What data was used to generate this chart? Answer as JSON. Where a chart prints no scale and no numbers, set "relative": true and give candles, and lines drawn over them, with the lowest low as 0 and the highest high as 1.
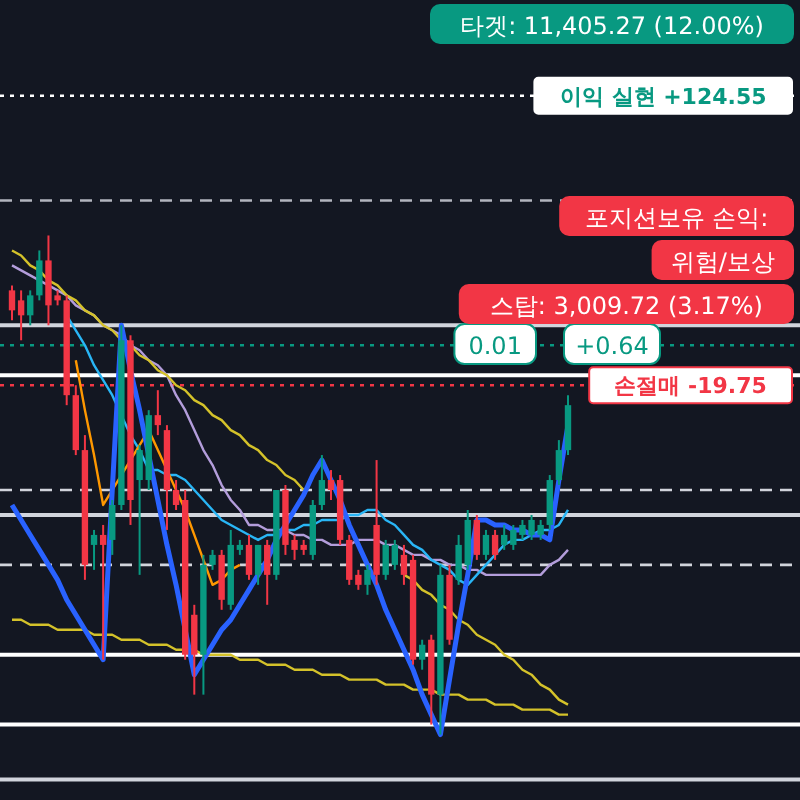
{
  "chart_data": {
    "type": "candlestick",
    "relative": true,
    "categories": [
      null,
      null,
      null,
      null,
      null,
      null,
      null,
      null,
      null,
      null,
      null,
      null,
      null,
      null,
      null,
      null,
      null,
      null,
      null,
      null,
      null,
      null,
      null,
      null,
      null,
      null,
      null,
      null,
      null,
      null,
      null,
      null,
      null,
      null,
      null,
      null,
      null,
      null,
      null,
      null,
      null,
      null,
      null,
      null,
      null,
      null,
      null,
      null,
      null,
      null,
      null,
      null,
      null,
      null,
      null,
      null,
      null,
      null,
      null,
      null,
      null,
      null
    ],
    "ohlc": [
      [
        0.89,
        0.9,
        0.83,
        0.85
      ],
      [
        0.87,
        0.89,
        0.79,
        0.84
      ],
      [
        0.84,
        0.89,
        0.82,
        0.88
      ],
      [
        0.88,
        0.97,
        0.87,
        0.95
      ],
      [
        0.95,
        1.0,
        0.82,
        0.86
      ],
      [
        0.88,
        0.89,
        0.86,
        0.87
      ],
      [
        0.87,
        0.88,
        0.66,
        0.68
      ],
      [
        0.68,
        0.7,
        0.56,
        0.57
      ],
      [
        0.57,
        0.6,
        0.31,
        0.34
      ],
      [
        0.38,
        0.41,
        0.33,
        0.4
      ],
      [
        0.4,
        0.42,
        0.15,
        0.38
      ],
      [
        0.39,
        0.47,
        0.36,
        0.46
      ],
      [
        0.46,
        0.82,
        0.45,
        0.79
      ],
      [
        0.79,
        0.8,
        0.42,
        0.47
      ],
      [
        0.51,
        0.58,
        0.32,
        0.57
      ],
      [
        0.51,
        0.65,
        0.49,
        0.64
      ],
      [
        0.64,
        0.69,
        0.6,
        0.62
      ],
      [
        0.61,
        0.62,
        0.41,
        0.49
      ],
      [
        0.49,
        0.51,
        0.45,
        0.46
      ],
      [
        0.47,
        0.49,
        0.15,
        0.16
      ],
      [
        0.24,
        0.26,
        0.08,
        0.16
      ],
      [
        0.16,
        0.36,
        0.08,
        0.34
      ],
      [
        0.34,
        0.37,
        0.33,
        0.36
      ],
      [
        0.36,
        0.37,
        0.25,
        0.27
      ],
      [
        0.26,
        0.41,
        0.25,
        0.38
      ],
      [
        0.37,
        0.39,
        0.36,
        0.38
      ],
      [
        0.38,
        0.4,
        0.31,
        0.32
      ],
      [
        0.32,
        0.38,
        0.3,
        0.38
      ],
      [
        0.38,
        0.39,
        0.26,
        0.32
      ],
      [
        0.32,
        0.49,
        0.31,
        0.49
      ],
      [
        0.49,
        0.5,
        0.36,
        0.38
      ],
      [
        0.39,
        0.4,
        0.35,
        0.37
      ],
      [
        0.38,
        0.39,
        0.36,
        0.37
      ],
      [
        0.36,
        0.47,
        0.35,
        0.46
      ],
      [
        0.46,
        0.56,
        0.45,
        0.51
      ],
      [
        0.51,
        0.53,
        0.47,
        0.49
      ],
      [
        0.51,
        0.52,
        0.38,
        0.39
      ],
      [
        0.39,
        0.4,
        0.3,
        0.31
      ],
      [
        0.32,
        0.33,
        0.29,
        0.3
      ],
      [
        0.3,
        0.34,
        0.28,
        0.33
      ],
      [
        0.42,
        0.55,
        0.3,
        0.32
      ],
      [
        0.32,
        0.39,
        0.31,
        0.38
      ],
      [
        0.34,
        0.39,
        0.33,
        0.38
      ],
      [
        0.36,
        0.38,
        0.3,
        0.32
      ],
      [
        0.35,
        0.36,
        0.14,
        0.15
      ],
      [
        0.15,
        0.19,
        0.13,
        0.18
      ],
      [
        0.19,
        0.2,
        0.02,
        0.08
      ],
      [
        0.08,
        0.34,
        0.0,
        0.32
      ],
      [
        0.32,
        0.34,
        0.18,
        0.19
      ],
      [
        0.31,
        0.4,
        0.3,
        0.38
      ],
      [
        0.34,
        0.45,
        0.33,
        0.43
      ],
      [
        0.43,
        0.44,
        0.35,
        0.36
      ],
      [
        0.36,
        0.41,
        0.35,
        0.4
      ],
      [
        0.4,
        0.41,
        0.35,
        0.36
      ],
      [
        0.38,
        0.42,
        0.37,
        0.4
      ],
      [
        0.38,
        0.42,
        0.37,
        0.41
      ],
      [
        0.4,
        0.43,
        0.39,
        0.42
      ],
      [
        0.4,
        0.44,
        0.39,
        0.43
      ],
      [
        0.4,
        0.43,
        0.39,
        0.42
      ],
      [
        0.42,
        0.52,
        0.41,
        0.51
      ],
      [
        0.51,
        0.59,
        0.5,
        0.57
      ],
      [
        0.57,
        0.68,
        0.56,
        0.66
      ]
    ],
    "colors": [
      "#f23645",
      "#f23645",
      "#089981",
      "#089981",
      "#f23645",
      "#f23645",
      "#f23645",
      "#f23645",
      "#f23645",
      "#089981",
      "#f23645",
      "#089981",
      "#089981",
      "#f23645",
      "#089981",
      "#089981",
      "#f23645",
      "#f23645",
      "#f23645",
      "#f23645",
      "#f23645",
      "#089981",
      "#089981",
      "#f23645",
      "#089981",
      "#089981",
      "#f23645",
      "#089981",
      "#f23645",
      "#089981",
      "#f23645",
      "#f23645",
      "#f23645",
      "#089981",
      "#089981",
      "#f23645",
      "#f23645",
      "#f23645",
      "#f23645",
      "#089981",
      "#f23645",
      "#089981",
      "#089981",
      "#f23645",
      "#f23645",
      "#089981",
      "#f23645",
      "#089981",
      "#f23645",
      "#089981",
      "#089981",
      "#f23645",
      "#089981",
      "#f23645",
      "#089981",
      "#089981",
      "#089981",
      "#089981",
      "#089981",
      "#089981",
      "#089981",
      "#089981"
    ],
    "series": [
      {
        "type": "line",
        "color": "#b39ddb",
        "values": [
          0.94,
          0.93,
          0.92,
          0.91,
          0.9,
          0.89,
          0.88,
          0.86,
          0.85,
          0.84,
          0.82,
          0.81,
          0.8,
          0.78,
          0.77,
          0.75,
          0.74,
          0.72,
          0.68,
          0.65,
          0.61,
          0.57,
          0.54,
          0.5,
          0.47,
          0.45,
          0.42,
          0.42,
          0.41,
          0.41,
          0.41,
          0.4,
          0.4,
          0.39,
          0.39,
          0.38,
          0.38,
          0.38,
          0.39,
          0.39,
          0.39,
          0.38,
          0.38,
          0.37,
          0.36,
          0.36,
          0.35,
          0.35,
          0.34,
          0.34,
          0.33,
          0.33,
          0.32,
          0.32,
          0.32,
          0.32,
          0.32,
          0.32,
          0.32,
          0.34,
          0.35,
          0.37
        ]
      },
      {
        "type": "line",
        "color": "#29b6f6",
        "values": [
          null,
          null,
          null,
          null,
          null,
          null,
          0.84,
          0.81,
          0.78,
          0.74,
          0.71,
          0.68,
          0.64,
          0.6,
          0.57,
          0.53,
          0.53,
          0.52,
          0.52,
          0.51,
          0.49,
          0.47,
          0.45,
          0.43,
          0.42,
          0.41,
          0.4,
          0.39,
          0.4,
          0.4,
          0.41,
          0.41,
          0.42,
          0.42,
          0.43,
          0.43,
          0.43,
          0.44,
          0.44,
          0.45,
          0.45,
          0.43,
          0.42,
          0.4,
          0.38,
          0.37,
          0.35,
          0.34,
          0.33,
          0.31,
          0.3,
          0.32,
          0.34,
          0.36,
          0.38,
          0.39,
          0.39,
          0.4,
          0.41,
          0.41,
          0.42,
          0.45
        ]
      },
      {
        "type": "line",
        "color": "#ff9800",
        "values": [
          null,
          null,
          null,
          null,
          null,
          null,
          null,
          0.75,
          0.65,
          0.56,
          0.46,
          0.49,
          0.52,
          0.55,
          0.58,
          0.61,
          0.57,
          0.53,
          0.49,
          0.45,
          0.4,
          0.35,
          0.3,
          0.31,
          0.33,
          0.34,
          null,
          null,
          null,
          null,
          null,
          null,
          null,
          null,
          null,
          null,
          null,
          null,
          null,
          null,
          null,
          null,
          null,
          null,
          null,
          null,
          null,
          null,
          null,
          null,
          null,
          null,
          null,
          null,
          null,
          null,
          null,
          null,
          null,
          null,
          null,
          null
        ]
      },
      {
        "type": "line",
        "color": "#d4c22a",
        "values": [
          0.97,
          0.96,
          0.94,
          0.93,
          0.91,
          0.9,
          0.88,
          0.87,
          0.85,
          0.84,
          0.82,
          0.81,
          0.79,
          0.78,
          0.76,
          0.75,
          0.73,
          0.72,
          0.7,
          0.69,
          0.67,
          0.66,
          0.64,
          0.63,
          0.61,
          0.6,
          0.58,
          0.57,
          0.55,
          0.54,
          0.52,
          0.51,
          0.49,
          null,
          null,
          null,
          null,
          null,
          null,
          null,
          null,
          null,
          null,
          null,
          null,
          null,
          null,
          null,
          null,
          null,
          null,
          null,
          null,
          null,
          null,
          null,
          null,
          null,
          null,
          null,
          null,
          null
        ]
      },
      {
        "type": "line",
        "color": "#d4c22a",
        "values": [
          0.23,
          0.23,
          0.22,
          0.22,
          0.22,
          0.21,
          0.21,
          0.21,
          0.21,
          0.2,
          0.2,
          0.2,
          0.19,
          0.19,
          0.19,
          0.18,
          0.18,
          0.18,
          0.17,
          0.17,
          0.17,
          0.16,
          0.16,
          0.16,
          0.16,
          0.15,
          0.15,
          0.15,
          0.14,
          0.14,
          0.14,
          0.13,
          0.13,
          0.13,
          0.12,
          0.12,
          0.12,
          0.11,
          0.11,
          0.11,
          0.11,
          0.1,
          0.1,
          0.1,
          0.09,
          0.09,
          0.09,
          0.08,
          0.08,
          0.08,
          0.07,
          0.07,
          0.07,
          0.06,
          0.06,
          0.06,
          0.05,
          0.05,
          0.05,
          0.05,
          0.04,
          0.04
        ]
      },
      {
        "type": "line",
        "color": "#d4c22a",
        "values": [
          null,
          null,
          null,
          null,
          null,
          null,
          null,
          null,
          null,
          null,
          null,
          null,
          null,
          null,
          null,
          null,
          null,
          null,
          null,
          null,
          null,
          null,
          null,
          null,
          null,
          null,
          null,
          null,
          null,
          null,
          null,
          null,
          null,
          null,
          null,
          null,
          null,
          null,
          null,
          null,
          null,
          null,
          null,
          0.32,
          0.31,
          0.29,
          0.28,
          0.26,
          0.25,
          0.23,
          0.22,
          0.2,
          0.19,
          0.18,
          0.16,
          0.15,
          0.13,
          0.12,
          0.1,
          0.09,
          0.07,
          0.06
        ]
      },
      {
        "type": "line",
        "color": "#2962ff",
        "values": [
          0.46,
          0.43,
          0.4,
          0.37,
          0.34,
          0.31,
          0.27,
          0.24,
          0.21,
          0.18,
          0.15,
          0.49,
          0.82,
          0.73,
          0.65,
          0.56,
          0.47,
          0.38,
          0.3,
          null,
          0.12,
          0.15,
          0.18,
          0.21,
          0.23,
          0.26,
          0.29,
          0.32,
          0.35,
          0.39,
          0.42,
          0.45,
          0.48,
          0.52,
          0.55,
          0.51,
          0.47,
          0.42,
          0.38,
          0.34,
          0.3,
          0.25,
          0.21,
          0.17,
          0.13,
          0.08,
          0.04,
          0,
          0.11,
          0.22,
          0.32,
          0.43,
          0.43,
          0.42,
          0.42,
          0.41,
          0.41,
          0.4,
          0.4,
          0.39,
          0.51,
          0.62
        ]
      }
    ],
    "ref_lines": [
      {
        "axis": "y",
        "value": 1.28,
        "color": "#ffffff",
        "line_style": "dotted",
        "label": "이익 실현 +124.55"
      },
      {
        "axis": "y",
        "value": 1.07,
        "color": "#b2b5be",
        "line_style": "dashed"
      },
      {
        "axis": "y",
        "value": 0.82,
        "color": "#d1d4dc",
        "line_style": "solid"
      },
      {
        "axis": "y",
        "value": 0.78,
        "color": "#089981",
        "line_style": "dotted"
      },
      {
        "axis": "y",
        "value": 0.72,
        "color": "#ffffff",
        "line_style": "solid"
      },
      {
        "axis": "y",
        "value": 0.7,
        "color": "#f23645",
        "line_style": "dotted",
        "label": "손절매 -19.75"
      },
      {
        "axis": "y",
        "value": 0.49,
        "color": "#d1d4dc",
        "line_style": "dashed"
      },
      {
        "axis": "y",
        "value": 0.44,
        "color": "#d1d4dc",
        "line_style": "solid"
      },
      {
        "axis": "y",
        "value": 0.34,
        "color": "#d1d4dc",
        "line_style": "dashed"
      },
      {
        "axis": "y",
        "value": 0.16,
        "color": "#ffffff",
        "line_style": "solid"
      },
      {
        "axis": "y",
        "value": 0.02,
        "color": "#ffffff",
        "line_style": "solid"
      },
      {
        "axis": "y",
        "value": -0.09,
        "color": "#d1d4dc",
        "line_style": "solid"
      }
    ],
    "annotations": [
      "타겟: 11,405.27 (12.00%)",
      "포지션보유 손익:",
      "위험/보상",
      "0.01",
      "+0.64",
      "스탑: 3,009.72 (3.17%)"
    ]
  }
}
